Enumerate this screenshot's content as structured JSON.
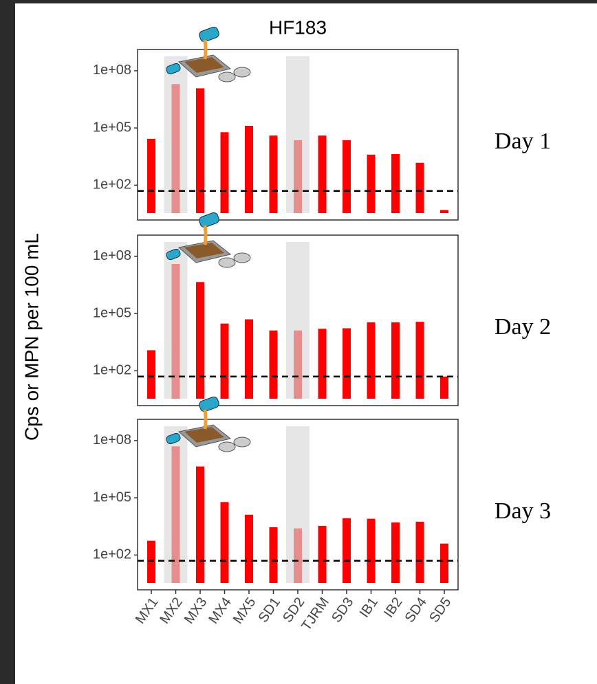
{
  "title": "HF183",
  "y_label": "Cps or MPN per 100 mL",
  "categories": [
    "MX1",
    "MX2",
    "MX3",
    "MX4",
    "MX5",
    "SD1",
    "SD2",
    "TJRM",
    "SD3",
    "IB1",
    "IB2",
    "SD4",
    "SD5"
  ],
  "highlight": [
    "MX2",
    "SD2"
  ],
  "highlight_color": "#d9d9d9",
  "color": "#ff0000",
  "chart_data": [
    {
      "type": "bar",
      "panel_label": "Day 1",
      "y_log": true,
      "ylim": [
        1.5,
        1300000000
      ],
      "yticks": [
        {
          "value": 100,
          "label": "1e+02"
        },
        {
          "value": 100000,
          "label": "1e+05"
        },
        {
          "value": 100000000,
          "label": "1e+08"
        }
      ],
      "threshold": 50,
      "values": [
        27000,
        20000000,
        12000000,
        60000,
        130000,
        40000,
        23000,
        40000,
        23000,
        4000,
        4300,
        1500,
        5
      ]
    },
    {
      "type": "bar",
      "panel_label": "Day 2",
      "y_log": true,
      "ylim": [
        1.5,
        1300000000
      ],
      "yticks": [
        {
          "value": 100,
          "label": "1e+02"
        },
        {
          "value": 100000,
          "label": "1e+05"
        },
        {
          "value": 100000000,
          "label": "1e+08"
        }
      ],
      "threshold": 50,
      "values": [
        1200,
        40000000,
        4500000,
        30000,
        50000,
        13000,
        13000,
        16000,
        17000,
        35000,
        35000,
        37000,
        50
      ]
    },
    {
      "type": "bar",
      "panel_label": "Day 3",
      "y_log": true,
      "ylim": [
        1.5,
        1300000000
      ],
      "yticks": [
        {
          "value": 100,
          "label": "1e+02"
        },
        {
          "value": 100000,
          "label": "1e+05"
        },
        {
          "value": 100000000,
          "label": "1e+08"
        }
      ],
      "threshold": 50,
      "values": [
        560,
        50000000,
        4400000,
        60000,
        13000,
        2900,
        2500,
        3400,
        8500,
        8000,
        5100,
        5600,
        400
      ]
    }
  ]
}
